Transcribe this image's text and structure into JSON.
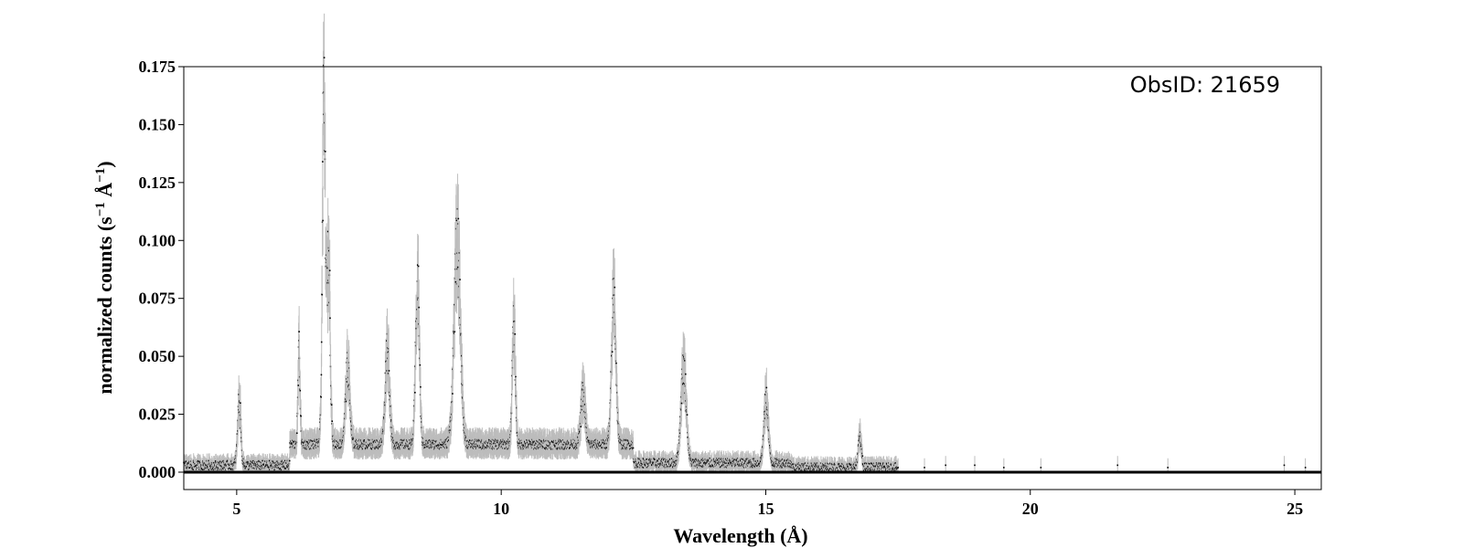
{
  "chart_data": {
    "type": "scatter",
    "xlabel": "Wavelength (Å)",
    "ylabel_main": "normalized counts (s",
    "ylabel_sup1": "−1",
    "ylabel_mid": " Å",
    "ylabel_sup2": "−1",
    "ylabel_end": ")",
    "annotation": "ObsID: 21659",
    "xlim": [
      4.0,
      25.5
    ],
    "ylim": [
      -0.0075,
      0.175
    ],
    "xticks": [
      5,
      10,
      15,
      20,
      25
    ],
    "xtick_labels": [
      "5",
      "10",
      "15",
      "20",
      "25"
    ],
    "yticks": [
      0.0,
      0.025,
      0.05,
      0.075,
      0.1,
      0.125,
      0.15,
      0.175
    ],
    "ytick_labels": [
      "0.000",
      "0.025",
      "0.050",
      "0.075",
      "0.100",
      "0.125",
      "0.150",
      "0.175"
    ],
    "grid": false,
    "colors": {
      "points": "#000000",
      "errorbars": "#bdbdbd"
    },
    "baseline": 0.0,
    "continuum": [
      {
        "x_from": 4.0,
        "x_to": 6.0,
        "level": 0.003
      },
      {
        "x_from": 6.0,
        "x_to": 12.5,
        "level": 0.012
      },
      {
        "x_from": 12.5,
        "x_to": 15.5,
        "level": 0.004
      },
      {
        "x_from": 15.5,
        "x_to": 17.5,
        "level": 0.002
      }
    ],
    "lines": [
      {
        "x": 5.05,
        "y": 0.028,
        "width": 0.03
      },
      {
        "x": 6.18,
        "y": 0.04,
        "width": 0.02
      },
      {
        "x": 6.65,
        "y": 0.145,
        "width": 0.03
      },
      {
        "x": 6.74,
        "y": 0.08,
        "width": 0.03
      },
      {
        "x": 7.1,
        "y": 0.033,
        "width": 0.04
      },
      {
        "x": 7.85,
        "y": 0.042,
        "width": 0.04
      },
      {
        "x": 8.42,
        "y": 0.07,
        "width": 0.035
      },
      {
        "x": 9.17,
        "y": 0.086,
        "width": 0.06
      },
      {
        "x": 10.24,
        "y": 0.05,
        "width": 0.03
      },
      {
        "x": 11.55,
        "y": 0.022,
        "width": 0.04
      },
      {
        "x": 12.13,
        "y": 0.065,
        "width": 0.04
      },
      {
        "x": 13.45,
        "y": 0.042,
        "width": 0.05
      },
      {
        "x": 15.01,
        "y": 0.028,
        "width": 0.04
      },
      {
        "x": 16.78,
        "y": 0.013,
        "width": 0.03
      }
    ],
    "sparse_points": [
      {
        "x": 17.5,
        "y": 0.002
      },
      {
        "x": 18.0,
        "y": 0.002
      },
      {
        "x": 18.4,
        "y": 0.003
      },
      {
        "x": 18.95,
        "y": 0.003
      },
      {
        "x": 19.5,
        "y": 0.002
      },
      {
        "x": 20.2,
        "y": 0.002
      },
      {
        "x": 21.65,
        "y": 0.003
      },
      {
        "x": 22.6,
        "y": 0.002
      },
      {
        "x": 24.8,
        "y": 0.003
      },
      {
        "x": 25.2,
        "y": 0.002
      }
    ]
  }
}
